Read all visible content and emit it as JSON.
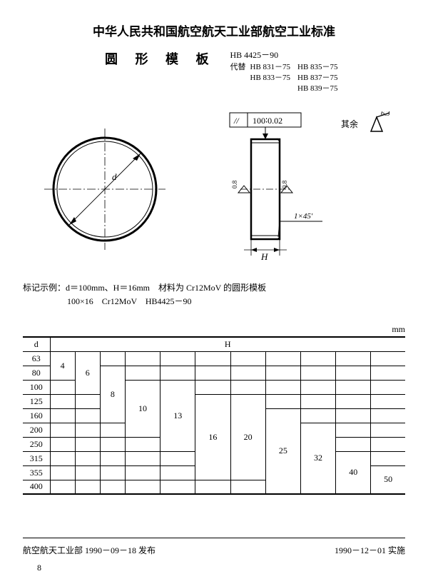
{
  "header": {
    "org_title": "中华人民共和国航空航天工业部航空工业标准",
    "doc_title": "圆 形 模 板",
    "standard_code": "HB 4425－90",
    "replaces_label": "代替",
    "replaces_col1": [
      "HB 831－75",
      "HB 833－75"
    ],
    "replaces_col2": [
      "HB 835－75",
      "HB 837－75",
      "HB 839－75"
    ]
  },
  "drawing": {
    "diameter_label": "d",
    "tolerance_box": "// 100∶0.02",
    "chamfer_label": "1×45°",
    "height_label": "H",
    "roughness_left": "0.8",
    "roughness_right": "0.8",
    "surface_note_text": "其余",
    "surface_note_val": "6.3"
  },
  "marking": {
    "line1": "标记示例：d＝100mm、H＝16mm　材料为 Cr12MoV 的圆形模板",
    "line2": "100×16　Cr12MoV　HB4425－90"
  },
  "table": {
    "unit": "mm",
    "d_header": "d",
    "h_header": "H",
    "d_values": [
      "63",
      "80",
      "100",
      "125",
      "160",
      "200",
      "250",
      "315",
      "355",
      "400"
    ],
    "h_columns": [
      "4",
      "6",
      "8",
      "10",
      "13",
      "16",
      "20",
      "25",
      "32",
      "40",
      "50"
    ],
    "h_spans": {
      "4": {
        "start": 0,
        "end": 1
      },
      "6": {
        "start": 0,
        "end": 2
      },
      "8": {
        "start": 1,
        "end": 4
      },
      "10": {
        "start": 2,
        "end": 5
      },
      "13": {
        "start": 2,
        "end": 6
      },
      "16": {
        "start": 3,
        "end": 8
      },
      "20": {
        "start": 3,
        "end": 8
      },
      "25": {
        "start": 4,
        "end": 9
      },
      "32": {
        "start": 5,
        "end": 9
      },
      "40": {
        "start": 7,
        "end": 9
      },
      "50": {
        "start": 8,
        "end": 9
      }
    }
  },
  "footer": {
    "left": "航空航天工业部 1990－09－18 发布",
    "right": "1990－12－01 实施",
    "page": "8"
  },
  "colors": {
    "text": "#000000",
    "bg": "#ffffff",
    "line": "#000000"
  }
}
